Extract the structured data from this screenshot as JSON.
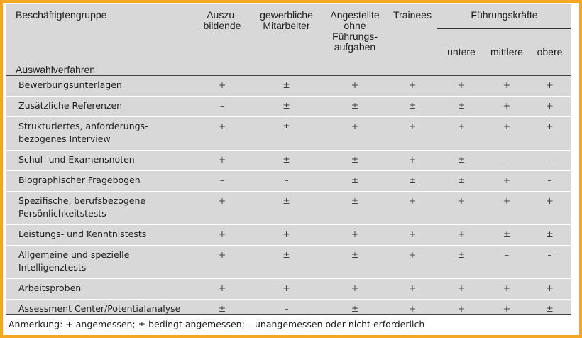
{
  "header": {
    "group_label": "Beschäftigtengruppe",
    "selection_label": "Auswahlverfahren",
    "columns": [
      "Auszu-\nbildende",
      "gewerbliche\nMitarbeiter",
      "Angestellte\nohne\nFührungs-\naufgaben",
      "Trainees"
    ],
    "leaders_label": "Führungskräfte",
    "leader_levels": [
      "untere",
      "mittlere",
      "obere"
    ]
  },
  "rows": [
    {
      "label": "Bewerbungsunterlagen",
      "values": [
        "+",
        "±",
        "+",
        "+",
        "+",
        "+",
        "+"
      ]
    },
    {
      "label": "Zusätzliche Referenzen",
      "values": [
        "–",
        "±",
        "±",
        "±",
        "±",
        "+",
        "+"
      ]
    },
    {
      "label": "Strukturiertes, anforderungs-\nbezogenes Interview",
      "values": [
        "+",
        "±",
        "+",
        "+",
        "+",
        "+",
        "+"
      ]
    },
    {
      "label": "Schul- und Examensnoten",
      "values": [
        "+",
        "±",
        "±",
        "+",
        "±",
        "–",
        "–"
      ]
    },
    {
      "label": "Biographischer Fragebogen",
      "values": [
        "–",
        "–",
        "±",
        "±",
        "±",
        "+",
        "–"
      ]
    },
    {
      "label": "Spezifische, berufsbezogene\nPersönlichkeitstests",
      "values": [
        "+",
        "±",
        "±",
        "+",
        "+",
        "+",
        "+"
      ]
    },
    {
      "label": "Leistungs- und Kenntnistests",
      "values": [
        "+",
        "+",
        "+",
        "+",
        "+",
        "±",
        "±"
      ]
    },
    {
      "label": "Allgemeine und spezielle\nIntelligenztests",
      "values": [
        "+",
        "±",
        "±",
        "+",
        "±",
        "–",
        "–"
      ]
    },
    {
      "label": "Arbeitsproben",
      "values": [
        "+",
        "+",
        "+",
        "+",
        "+",
        "+",
        "+"
      ]
    },
    {
      "label": "Assessment Center/Potentialanalyse",
      "values": [
        "±",
        "–",
        "±",
        "+",
        "+",
        "+",
        "±"
      ]
    }
  ],
  "note": "Anmerkung: + angemessen; ± bedingt angemessen; – unangemessen oder nicht erforderlich"
}
